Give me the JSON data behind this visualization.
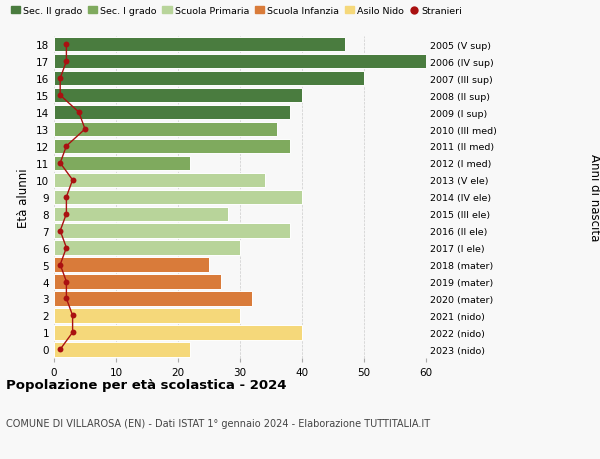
{
  "ages": [
    18,
    17,
    16,
    15,
    14,
    13,
    12,
    11,
    10,
    9,
    8,
    7,
    6,
    5,
    4,
    3,
    2,
    1,
    0
  ],
  "right_labels": [
    "2005 (V sup)",
    "2006 (IV sup)",
    "2007 (III sup)",
    "2008 (II sup)",
    "2009 (I sup)",
    "2010 (III med)",
    "2011 (II med)",
    "2012 (I med)",
    "2013 (V ele)",
    "2014 (IV ele)",
    "2015 (III ele)",
    "2016 (II ele)",
    "2017 (I ele)",
    "2018 (mater)",
    "2019 (mater)",
    "2020 (mater)",
    "2021 (nido)",
    "2022 (nido)",
    "2023 (nido)"
  ],
  "bar_values": [
    47,
    60,
    50,
    40,
    38,
    36,
    38,
    22,
    34,
    40,
    28,
    38,
    30,
    25,
    27,
    32,
    30,
    40,
    22
  ],
  "bar_colors": [
    "#4a7c3f",
    "#4a7c3f",
    "#4a7c3f",
    "#4a7c3f",
    "#4a7c3f",
    "#7faa5e",
    "#7faa5e",
    "#7faa5e",
    "#b8d49a",
    "#b8d49a",
    "#b8d49a",
    "#b8d49a",
    "#b8d49a",
    "#d97b3a",
    "#d97b3a",
    "#d97b3a",
    "#f5d87a",
    "#f5d87a",
    "#f5d87a"
  ],
  "stranieri_values": [
    2,
    2,
    1,
    1,
    4,
    5,
    2,
    1,
    3,
    2,
    2,
    1,
    2,
    1,
    2,
    2,
    3,
    3,
    1
  ],
  "stranieri_color": "#aa1111",
  "legend_items": [
    {
      "label": "Sec. II grado",
      "color": "#4a7c3f",
      "type": "patch"
    },
    {
      "label": "Sec. I grado",
      "color": "#7faa5e",
      "type": "patch"
    },
    {
      "label": "Scuola Primaria",
      "color": "#b8d49a",
      "type": "patch"
    },
    {
      "label": "Scuola Infanzia",
      "color": "#d97b3a",
      "type": "patch"
    },
    {
      "label": "Asilo Nido",
      "color": "#f5d87a",
      "type": "patch"
    },
    {
      "label": "Stranieri",
      "color": "#aa1111",
      "type": "dot"
    }
  ],
  "ylabel_left": "Età alunni",
  "ylabel_right": "Anni di nascita",
  "xlim": [
    0,
    60
  ],
  "xticks": [
    0,
    10,
    20,
    30,
    40,
    50,
    60
  ],
  "title": "Popolazione per età scolastica - 2024",
  "subtitle": "COMUNE DI VILLAROSA (EN) - Dati ISTAT 1° gennaio 2024 - Elaborazione TUTTITALIA.IT",
  "background_color": "#f8f8f8",
  "bar_edgecolor": "white",
  "grid_color": "#cccccc"
}
